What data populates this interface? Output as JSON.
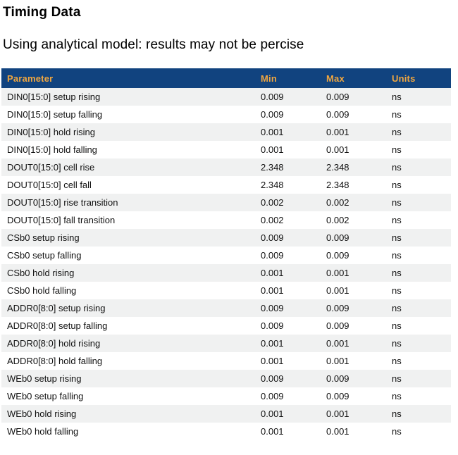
{
  "page": {
    "title": "Timing Data",
    "subtitle": "Using analytical model: results may not be percise"
  },
  "table": {
    "columns": [
      "Parameter",
      "Min",
      "Max",
      "Units"
    ],
    "rows": [
      {
        "parameter": "DIN0[15:0] setup rising",
        "min": "0.009",
        "max": "0.009",
        "units": "ns"
      },
      {
        "parameter": "DIN0[15:0] setup falling",
        "min": "0.009",
        "max": "0.009",
        "units": "ns"
      },
      {
        "parameter": "DIN0[15:0] hold rising",
        "min": "0.001",
        "max": "0.001",
        "units": "ns"
      },
      {
        "parameter": "DIN0[15:0] hold falling",
        "min": "0.001",
        "max": "0.001",
        "units": "ns"
      },
      {
        "parameter": "DOUT0[15:0] cell rise",
        "min": "2.348",
        "max": "2.348",
        "units": "ns"
      },
      {
        "parameter": "DOUT0[15:0] cell fall",
        "min": "2.348",
        "max": "2.348",
        "units": "ns"
      },
      {
        "parameter": "DOUT0[15:0] rise transition",
        "min": "0.002",
        "max": "0.002",
        "units": "ns"
      },
      {
        "parameter": "DOUT0[15:0] fall transition",
        "min": "0.002",
        "max": "0.002",
        "units": "ns"
      },
      {
        "parameter": "CSb0 setup rising",
        "min": "0.009",
        "max": "0.009",
        "units": "ns"
      },
      {
        "parameter": "CSb0 setup falling",
        "min": "0.009",
        "max": "0.009",
        "units": "ns"
      },
      {
        "parameter": "CSb0 hold rising",
        "min": "0.001",
        "max": "0.001",
        "units": "ns"
      },
      {
        "parameter": "CSb0 hold falling",
        "min": "0.001",
        "max": "0.001",
        "units": "ns"
      },
      {
        "parameter": "ADDR0[8:0] setup rising",
        "min": "0.009",
        "max": "0.009",
        "units": "ns"
      },
      {
        "parameter": "ADDR0[8:0] setup falling",
        "min": "0.009",
        "max": "0.009",
        "units": "ns"
      },
      {
        "parameter": "ADDR0[8:0] hold rising",
        "min": "0.001",
        "max": "0.001",
        "units": "ns"
      },
      {
        "parameter": "ADDR0[8:0] hold falling",
        "min": "0.001",
        "max": "0.001",
        "units": "ns"
      },
      {
        "parameter": "WEb0 setup rising",
        "min": "0.009",
        "max": "0.009",
        "units": "ns"
      },
      {
        "parameter": "WEb0 setup falling",
        "min": "0.009",
        "max": "0.009",
        "units": "ns"
      },
      {
        "parameter": "WEb0 hold rising",
        "min": "0.001",
        "max": "0.001",
        "units": "ns"
      },
      {
        "parameter": "WEb0 hold falling",
        "min": "0.001",
        "max": "0.001",
        "units": "ns"
      }
    ]
  },
  "colors": {
    "header_bg": "#11437f",
    "header_text": "#f0a640",
    "row_alt_bg": "#f0f1f1",
    "row_text": "#111111",
    "page_bg": "#ffffff"
  }
}
